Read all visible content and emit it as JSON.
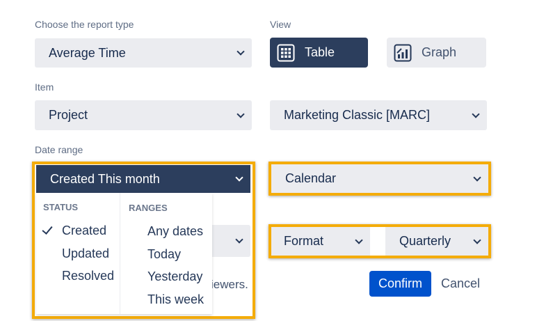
{
  "report_type": {
    "label": "Choose the report type",
    "value": "Average Time"
  },
  "view": {
    "label": "View",
    "table": "Table",
    "graph": "Graph",
    "selected": "Table"
  },
  "item": {
    "label": "Item",
    "value": "Project",
    "project": "Marketing Classic [MARC]"
  },
  "date_range": {
    "label": "Date range",
    "value": "Created This month",
    "status_header": "STATUS",
    "status": [
      "Created",
      "Updated",
      "Resolved"
    ],
    "status_selected": "Created",
    "ranges_header": "RANGES",
    "ranges": [
      "Any dates",
      "Today",
      "Yesterday",
      "This week"
    ]
  },
  "calendar": {
    "value": "Calendar"
  },
  "format": {
    "value": "Format",
    "period": "Quarterly"
  },
  "hidden_text": "iewers.",
  "actions": {
    "confirm": "Confirm",
    "cancel": "Cancel"
  },
  "colors": {
    "highlight": "#f4ac0a",
    "primary": "#0052cc",
    "dark": "#2c3e5d"
  }
}
